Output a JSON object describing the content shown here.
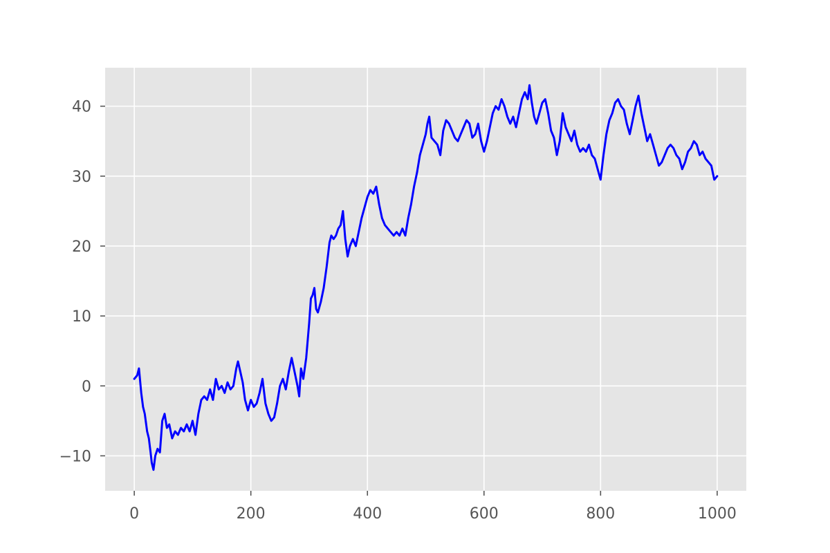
{
  "chart_data": {
    "type": "line",
    "title": "",
    "xlabel": "",
    "ylabel": "",
    "xlim": [
      -50,
      1050
    ],
    "ylim": [
      -15,
      45.5
    ],
    "grid": true,
    "style": "ggplot",
    "x_ticks": [
      {
        "value": 0,
        "label": "0"
      },
      {
        "value": 200,
        "label": "200"
      },
      {
        "value": 400,
        "label": "400"
      },
      {
        "value": 600,
        "label": "600"
      },
      {
        "value": 800,
        "label": "800"
      },
      {
        "value": 1000,
        "label": "1000"
      }
    ],
    "y_ticks": [
      {
        "value": -10,
        "label": "−10"
      },
      {
        "value": 0,
        "label": "0"
      },
      {
        "value": 10,
        "label": "10"
      },
      {
        "value": 20,
        "label": "20"
      },
      {
        "value": 30,
        "label": "30"
      },
      {
        "value": 40,
        "label": "40"
      }
    ],
    "series": [
      {
        "color": "#0000ff",
        "points": [
          [
            0,
            1
          ],
          [
            5,
            1.5
          ],
          [
            8,
            2.5
          ],
          [
            12,
            -1
          ],
          [
            15,
            -3
          ],
          [
            18,
            -4
          ],
          [
            22,
            -6.5
          ],
          [
            25,
            -7.5
          ],
          [
            28,
            -9.5
          ],
          [
            30,
            -11
          ],
          [
            33,
            -12
          ],
          [
            36,
            -10
          ],
          [
            40,
            -9
          ],
          [
            44,
            -9.5
          ],
          [
            48,
            -5
          ],
          [
            52,
            -4
          ],
          [
            56,
            -6
          ],
          [
            60,
            -5.5
          ],
          [
            65,
            -7.5
          ],
          [
            70,
            -6.5
          ],
          [
            75,
            -7
          ],
          [
            80,
            -6
          ],
          [
            85,
            -6.5
          ],
          [
            90,
            -5.5
          ],
          [
            95,
            -6.5
          ],
          [
            100,
            -5
          ],
          [
            105,
            -7
          ],
          [
            110,
            -4
          ],
          [
            115,
            -2
          ],
          [
            120,
            -1.5
          ],
          [
            125,
            -2
          ],
          [
            130,
            -0.5
          ],
          [
            135,
            -2
          ],
          [
            140,
            1
          ],
          [
            145,
            -0.5
          ],
          [
            150,
            0
          ],
          [
            155,
            -1
          ],
          [
            160,
            0.5
          ],
          [
            165,
            -0.5
          ],
          [
            170,
            0
          ],
          [
            175,
            2.5
          ],
          [
            178,
            3.5
          ],
          [
            182,
            2
          ],
          [
            186,
            0.5
          ],
          [
            190,
            -2
          ],
          [
            195,
            -3.5
          ],
          [
            200,
            -2
          ],
          [
            205,
            -3
          ],
          [
            210,
            -2.5
          ],
          [
            215,
            -1
          ],
          [
            220,
            1
          ],
          [
            225,
            -2.5
          ],
          [
            230,
            -4
          ],
          [
            235,
            -5
          ],
          [
            240,
            -4.5
          ],
          [
            245,
            -2.5
          ],
          [
            250,
            0
          ],
          [
            255,
            1
          ],
          [
            260,
            -0.5
          ],
          [
            265,
            2
          ],
          [
            270,
            4
          ],
          [
            275,
            2
          ],
          [
            280,
            0
          ],
          [
            283,
            -1.5
          ],
          [
            286,
            2.5
          ],
          [
            290,
            1
          ],
          [
            295,
            4
          ],
          [
            300,
            9
          ],
          [
            303,
            12.5
          ],
          [
            306,
            13
          ],
          [
            309,
            14
          ],
          [
            312,
            11
          ],
          [
            315,
            10.5
          ],
          [
            320,
            12
          ],
          [
            325,
            14
          ],
          [
            330,
            17
          ],
          [
            335,
            20.5
          ],
          [
            338,
            21.5
          ],
          [
            342,
            21
          ],
          [
            346,
            21.5
          ],
          [
            350,
            22.5
          ],
          [
            354,
            23
          ],
          [
            358,
            25
          ],
          [
            362,
            21
          ],
          [
            366,
            18.5
          ],
          [
            370,
            20
          ],
          [
            375,
            21
          ],
          [
            380,
            20
          ],
          [
            385,
            22
          ],
          [
            390,
            24
          ],
          [
            395,
            25.5
          ],
          [
            400,
            27
          ],
          [
            405,
            28
          ],
          [
            410,
            27.5
          ],
          [
            415,
            28.5
          ],
          [
            420,
            26
          ],
          [
            425,
            24
          ],
          [
            430,
            23
          ],
          [
            435,
            22.5
          ],
          [
            440,
            22
          ],
          [
            445,
            21.5
          ],
          [
            450,
            22
          ],
          [
            455,
            21.5
          ],
          [
            460,
            22.5
          ],
          [
            465,
            21.5
          ],
          [
            470,
            24
          ],
          [
            475,
            26
          ],
          [
            480,
            28.5
          ],
          [
            485,
            30.5
          ],
          [
            490,
            33
          ],
          [
            495,
            34.5
          ],
          [
            500,
            36
          ],
          [
            503,
            37.5
          ],
          [
            506,
            38.5
          ],
          [
            510,
            35.5
          ],
          [
            515,
            35
          ],
          [
            520,
            34.5
          ],
          [
            525,
            33
          ],
          [
            530,
            36.5
          ],
          [
            535,
            38
          ],
          [
            540,
            37.5
          ],
          [
            545,
            36.5
          ],
          [
            550,
            35.5
          ],
          [
            555,
            35
          ],
          [
            560,
            36
          ],
          [
            565,
            37
          ],
          [
            570,
            38
          ],
          [
            575,
            37.5
          ],
          [
            580,
            35.5
          ],
          [
            585,
            36
          ],
          [
            590,
            37.5
          ],
          [
            595,
            35
          ],
          [
            600,
            33.5
          ],
          [
            605,
            35
          ],
          [
            610,
            37
          ],
          [
            615,
            39
          ],
          [
            620,
            40
          ],
          [
            625,
            39.5
          ],
          [
            630,
            41
          ],
          [
            635,
            40
          ],
          [
            640,
            38.5
          ],
          [
            645,
            37.5
          ],
          [
            650,
            38.5
          ],
          [
            655,
            37
          ],
          [
            660,
            39
          ],
          [
            665,
            41
          ],
          [
            670,
            42
          ],
          [
            675,
            41
          ],
          [
            678,
            43
          ],
          [
            682,
            40.5
          ],
          [
            686,
            38.5
          ],
          [
            690,
            37.5
          ],
          [
            695,
            39
          ],
          [
            700,
            40.5
          ],
          [
            705,
            41
          ],
          [
            710,
            39
          ],
          [
            715,
            36.5
          ],
          [
            720,
            35.5
          ],
          [
            725,
            33
          ],
          [
            730,
            35
          ],
          [
            735,
            39
          ],
          [
            740,
            37
          ],
          [
            745,
            36
          ],
          [
            750,
            35
          ],
          [
            755,
            36.5
          ],
          [
            760,
            34.5
          ],
          [
            765,
            33.5
          ],
          [
            770,
            34
          ],
          [
            775,
            33.5
          ],
          [
            780,
            34.5
          ],
          [
            785,
            33
          ],
          [
            790,
            32.5
          ],
          [
            795,
            31
          ],
          [
            800,
            29.5
          ],
          [
            805,
            33
          ],
          [
            810,
            36
          ],
          [
            815,
            38
          ],
          [
            820,
            39
          ],
          [
            825,
            40.5
          ],
          [
            830,
            41
          ],
          [
            835,
            40
          ],
          [
            840,
            39.5
          ],
          [
            845,
            37.5
          ],
          [
            850,
            36
          ],
          [
            855,
            38
          ],
          [
            860,
            40
          ],
          [
            865,
            41.5
          ],
          [
            870,
            39
          ],
          [
            875,
            37
          ],
          [
            880,
            35
          ],
          [
            885,
            36
          ],
          [
            890,
            34.5
          ],
          [
            895,
            33
          ],
          [
            900,
            31.5
          ],
          [
            905,
            32
          ],
          [
            910,
            33
          ],
          [
            915,
            34
          ],
          [
            920,
            34.5
          ],
          [
            925,
            34
          ],
          [
            930,
            33
          ],
          [
            935,
            32.5
          ],
          [
            940,
            31
          ],
          [
            945,
            32
          ],
          [
            950,
            33.5
          ],
          [
            955,
            34
          ],
          [
            960,
            35
          ],
          [
            965,
            34.5
          ],
          [
            970,
            33
          ],
          [
            975,
            33.5
          ],
          [
            980,
            32.5
          ],
          [
            985,
            32
          ],
          [
            990,
            31.5
          ],
          [
            995,
            29.5
          ],
          [
            1000,
            30
          ]
        ]
      }
    ]
  }
}
